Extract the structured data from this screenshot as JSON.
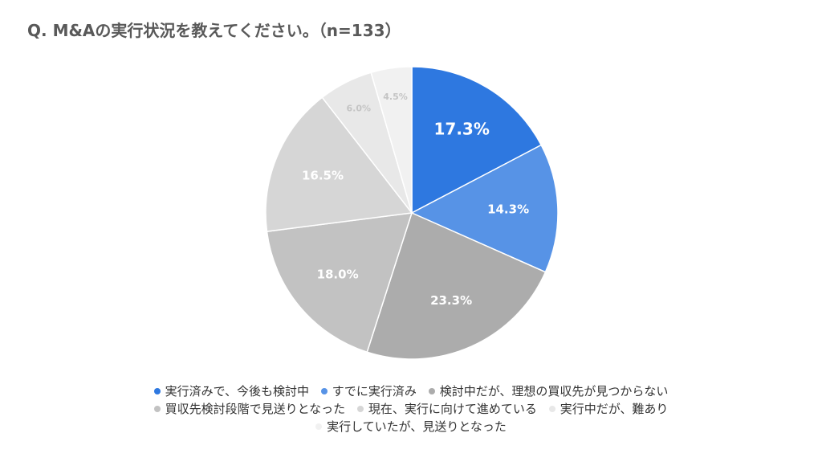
{
  "title": "Q. M&Aの実行状況を教えてください。（n=133）",
  "chart_data": {
    "type": "pie",
    "title": "Q. M&Aの実行状況を教えてください。（n=133）",
    "slices": [
      {
        "label": "実行済みで、今後も検討中",
        "value": 17.3,
        "display": "17.3%",
        "color": "#2e78e0",
        "label_color": "#ffffff"
      },
      {
        "label": "すでに実行済み",
        "value": 14.3,
        "display": "14.3%",
        "color": "#5793e6",
        "label_color": "#ffffff"
      },
      {
        "label": "検討中だが、理想の買収先が見つからない",
        "value": 23.3,
        "display": "23.3%",
        "color": "#acacac",
        "label_color": "#ffffff"
      },
      {
        "label": "買収先検討段階で見送りとなった",
        "value": 18.0,
        "display": "18.0%",
        "color": "#c2c2c2",
        "label_color": "#ffffff"
      },
      {
        "label": "現在、実行に向けて進めている",
        "value": 16.5,
        "display": "16.5%",
        "color": "#d6d6d6",
        "label_color": "#ffffff"
      },
      {
        "label": "実行中だが、難あり",
        "value": 6.0,
        "display": "6.0%",
        "color": "#e8e8e8",
        "label_color": "#c4c4c4"
      },
      {
        "label": "実行していたが、見送りとなった",
        "value": 4.5,
        "display": "4.5%",
        "color": "#f1f1f1",
        "label_color": "#c4c4c4"
      }
    ],
    "legend_position": "bottom"
  }
}
